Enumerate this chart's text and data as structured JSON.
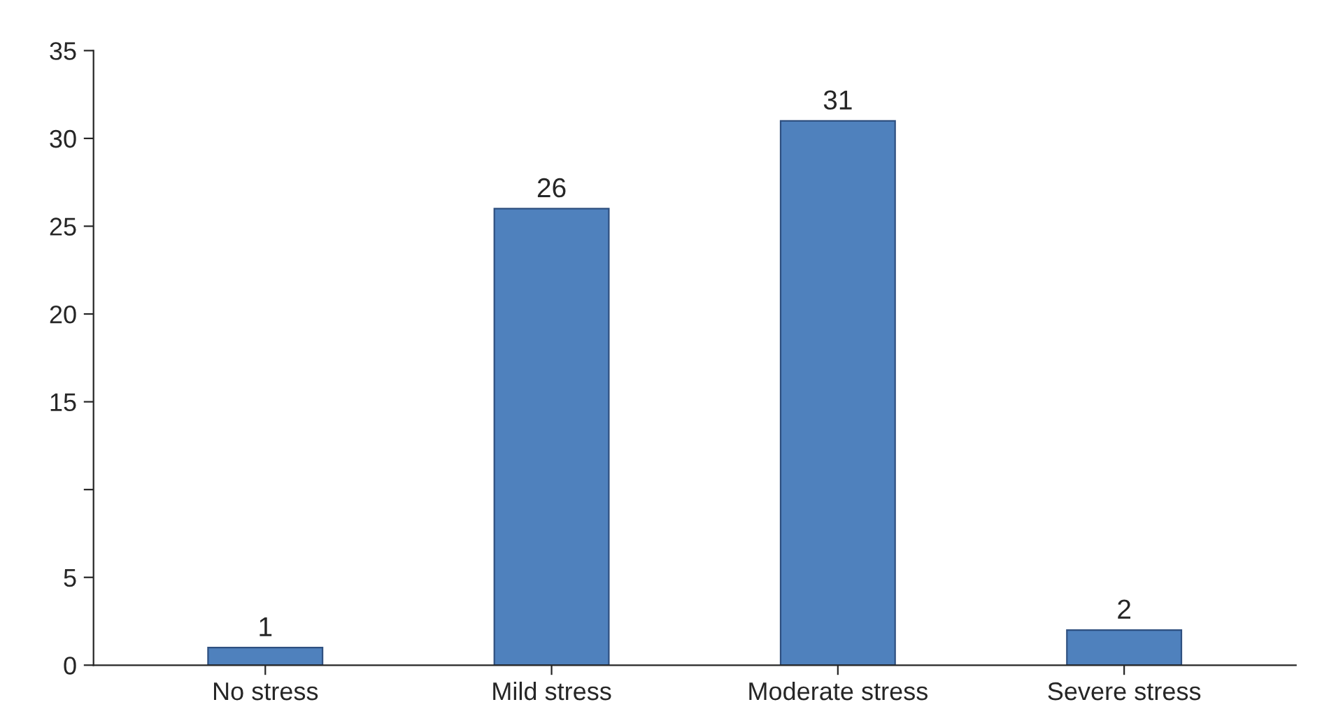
{
  "chart_data": {
    "type": "bar",
    "categories": [
      "No stress",
      "Mild stress",
      "Moderate stress",
      "Severe stress"
    ],
    "values": [
      1,
      26,
      31,
      2
    ],
    "color": "#4f81bd",
    "data_labels": true,
    "ylim": [
      0,
      35
    ],
    "yticks": [
      0,
      5,
      {
        "value": 10,
        "label": null
      },
      15,
      20,
      25,
      30,
      35
    ],
    "grid": false
  }
}
